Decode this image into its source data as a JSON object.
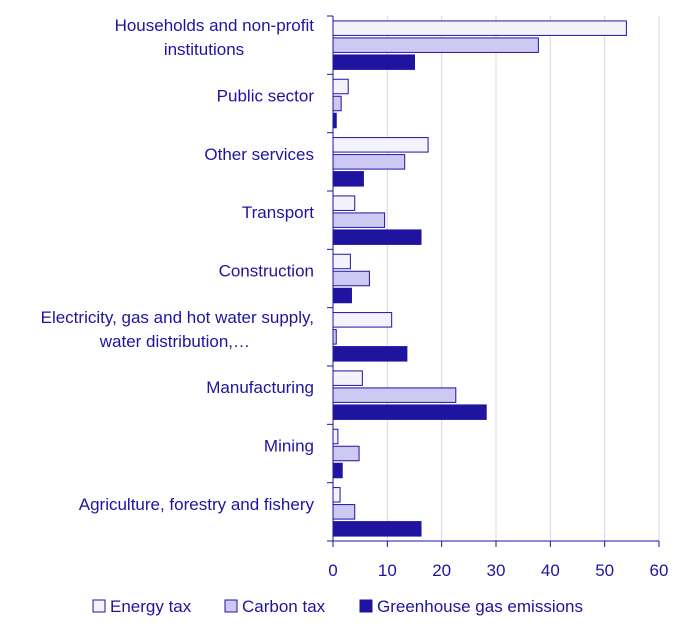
{
  "chart_data": {
    "type": "bar",
    "orientation": "horizontal",
    "title": "",
    "xlabel": "",
    "ylabel": "",
    "xlim": [
      0,
      60
    ],
    "xticks": [
      0,
      10,
      20,
      30,
      40,
      50,
      60
    ],
    "grid": true,
    "legend_position": "bottom",
    "categories": [
      [
        "Households and non-profit",
        "institutions"
      ],
      [
        "Public sector"
      ],
      [
        "Other services"
      ],
      [
        "Transport"
      ],
      [
        "Construction"
      ],
      [
        "Electricity, gas and hot water supply,",
        "water distribution,…"
      ],
      [
        "Manufacturing"
      ],
      [
        "Mining"
      ],
      [
        "Agriculture, forestry and fishery"
      ]
    ],
    "series": [
      {
        "name": "Energy tax",
        "color": "#f4f3fd",
        "values": [
          54.0,
          2.8,
          17.5,
          4.0,
          3.2,
          10.8,
          5.4,
          0.9,
          1.3
        ]
      },
      {
        "name": "Carbon tax",
        "color": "#cdc9f2",
        "values": [
          37.8,
          1.5,
          13.2,
          9.5,
          6.7,
          0.6,
          22.6,
          4.8,
          4.0
        ]
      },
      {
        "name": "Greenhouse gas emissions",
        "color": "#1f14a0",
        "values": [
          15.0,
          0.6,
          5.6,
          16.2,
          3.4,
          13.6,
          28.2,
          1.7,
          16.2
        ]
      }
    ]
  }
}
